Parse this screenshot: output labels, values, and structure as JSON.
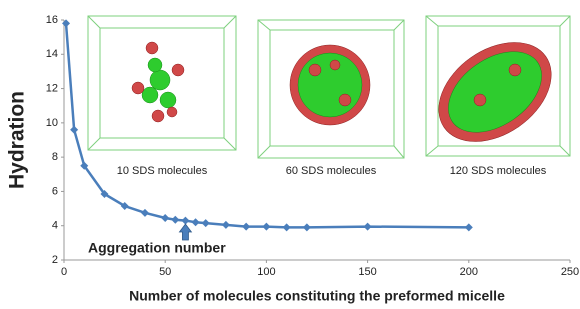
{
  "chart_data": {
    "type": "line",
    "x_label": "Number of molecules constituting the preformed micelle",
    "y_label": "Hydration",
    "x": [
      1,
      5,
      10,
      20,
      30,
      40,
      50,
      55,
      60,
      65,
      70,
      80,
      90,
      100,
      110,
      120,
      150,
      200
    ],
    "series": [
      {
        "name": "Hydration",
        "color": "#4a7ebb",
        "values": [
          15.8,
          9.6,
          7.5,
          5.85,
          5.15,
          4.75,
          4.45,
          4.35,
          4.3,
          4.2,
          4.15,
          4.05,
          3.95,
          3.95,
          3.9,
          3.9,
          3.95,
          3.9
        ]
      }
    ],
    "xlim": [
      0,
      250
    ],
    "xticks": [
      0,
      50,
      100,
      150,
      200,
      250
    ],
    "ylim": [
      2,
      16
    ],
    "yticks": [
      2,
      4,
      6,
      8,
      10,
      12,
      14,
      16
    ],
    "annotation": {
      "text": "Aggregation number",
      "x": 60
    },
    "insets": [
      "10 SDS molecules",
      "60 SDS molecules",
      "120 SDS molecules"
    ]
  }
}
